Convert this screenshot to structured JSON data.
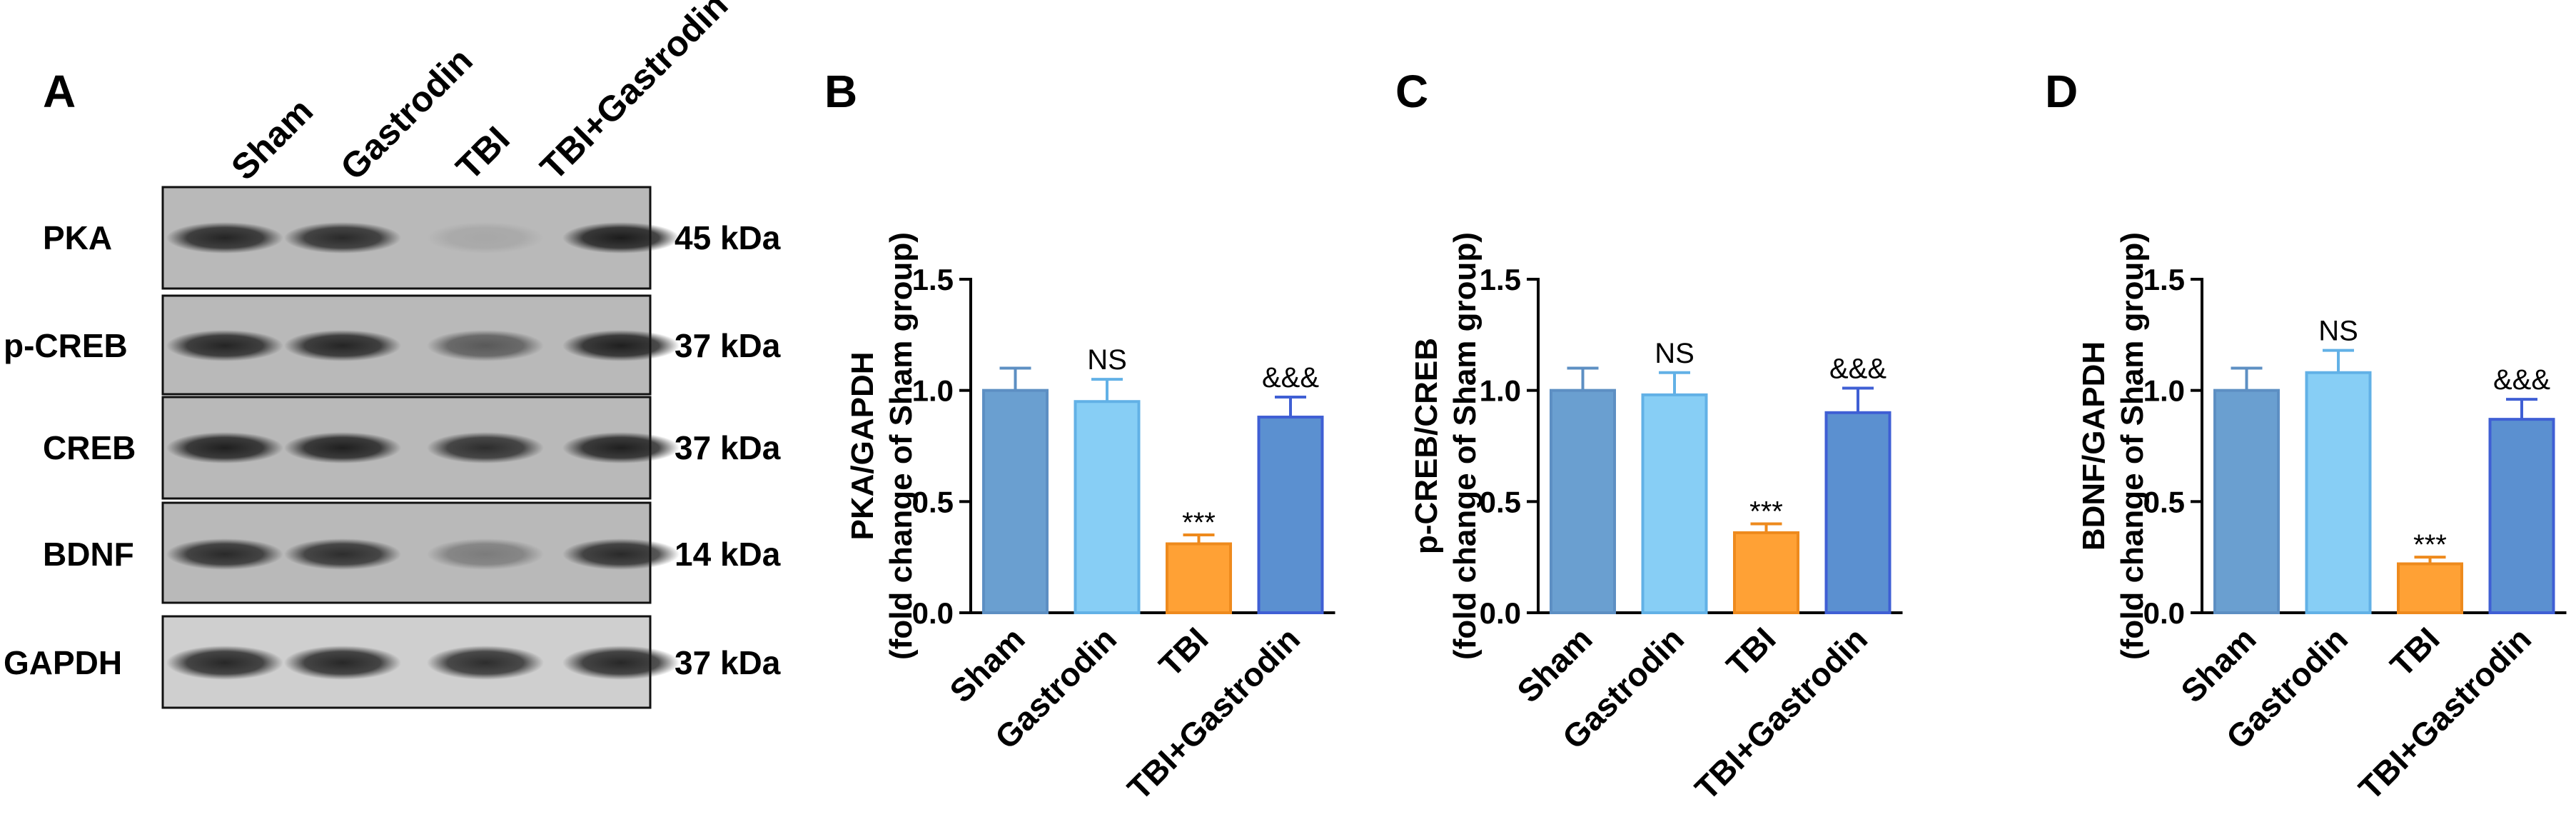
{
  "panel_a": {
    "letter": "A",
    "lanes": [
      "Sham",
      "Gastrodin",
      "TBI",
      "TBI+Gastrodin"
    ],
    "blots": [
      {
        "protein": "PKA",
        "kda": "45 kDa",
        "intensity": [
          0.85,
          0.82,
          0.1,
          0.9
        ]
      },
      {
        "protein": "p-CREB",
        "kda": "37 kDa",
        "intensity": [
          0.85,
          0.85,
          0.55,
          0.88
        ]
      },
      {
        "protein": "CREB",
        "kda": "37 kDa",
        "intensity": [
          0.88,
          0.88,
          0.8,
          0.88
        ]
      },
      {
        "protein": "BDNF",
        "kda": "14 kDa",
        "intensity": [
          0.82,
          0.8,
          0.35,
          0.82
        ]
      },
      {
        "protein": "GAPDH",
        "kda": "37 kDa",
        "intensity": [
          0.85,
          0.85,
          0.82,
          0.85
        ]
      }
    ]
  },
  "colors": {
    "sham": "#6a9fd0",
    "gastrodin": "#87cef5",
    "tbi": "#ffa135",
    "tbi_gastrodin": "#5b90d0",
    "sham_edge": "#5d8fc3",
    "gastrodin_edge": "#62b1e6",
    "tbi_edge": "#ee8a1d",
    "tbi_gastrodin_edge": "#3f5fd4"
  },
  "chart_data": [
    {
      "panel": "B",
      "type": "bar",
      "categories": [
        "Sham",
        "Gastrodin",
        "TBI",
        "TBI+Gastrodin"
      ],
      "values": [
        1.0,
        0.95,
        0.31,
        0.88
      ],
      "errors": [
        0.1,
        0.1,
        0.04,
        0.09
      ],
      "significance": [
        "",
        "NS",
        "***",
        "&&&"
      ],
      "ylabel_line1": "PKA/GAPDH",
      "ylabel_line2": "(fold change of Sham group)",
      "ylim": [
        0,
        1.5
      ],
      "yticks": [
        "0.0",
        "0.5",
        "1.0",
        "1.5"
      ]
    },
    {
      "panel": "C",
      "type": "bar",
      "categories": [
        "Sham",
        "Gastrodin",
        "TBI",
        "TBI+Gastrodin"
      ],
      "values": [
        1.0,
        0.98,
        0.36,
        0.9
      ],
      "errors": [
        0.1,
        0.1,
        0.04,
        0.11
      ],
      "significance": [
        "",
        "NS",
        "***",
        "&&&"
      ],
      "ylabel_line1": "p-CREB/CREB",
      "ylabel_line2": "(fold change of Sham group)",
      "ylim": [
        0,
        1.5
      ],
      "yticks": [
        "0.0",
        "0.5",
        "1.0",
        "1.5"
      ]
    },
    {
      "panel": "D",
      "type": "bar",
      "categories": [
        "Sham",
        "Gastrodin",
        "TBI",
        "TBI+Gastrodin"
      ],
      "values": [
        1.0,
        1.08,
        0.22,
        0.87
      ],
      "errors": [
        0.1,
        0.1,
        0.03,
        0.09
      ],
      "significance": [
        "",
        "NS",
        "***",
        "&&&"
      ],
      "ylabel_line1": "BDNF/GAPDH",
      "ylabel_line2": "(fold change of Sham group)",
      "ylim": [
        0,
        1.5
      ],
      "yticks": [
        "0.0",
        "0.5",
        "1.0",
        "1.5"
      ]
    }
  ]
}
